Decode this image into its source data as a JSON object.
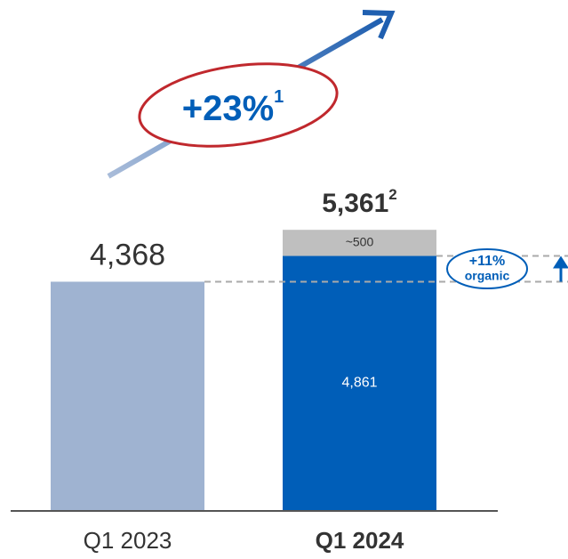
{
  "chart_data": {
    "type": "stacked_bar",
    "categories": [
      "Q1 2023",
      "Q1 2024"
    ],
    "series": [
      {
        "colors": [
          "#9fb3d1",
          "#005eb8"
        ],
        "values": [
          4368,
          4861
        ],
        "value_labels": [
          "4,368",
          "4,861"
        ]
      },
      {
        "color": "#bfbfbf",
        "values": [
          null,
          500
        ],
        "value_labels": [
          null,
          "~500"
        ]
      }
    ],
    "ylim": [
      0,
      5500
    ],
    "annotations": {
      "total": {
        "value": 5361,
        "label": "5,361",
        "superscript": "2"
      },
      "growth": {
        "text": "+23%",
        "superscript": "1"
      },
      "organic": {
        "text": "+11%",
        "subtext": "organic"
      }
    }
  }
}
